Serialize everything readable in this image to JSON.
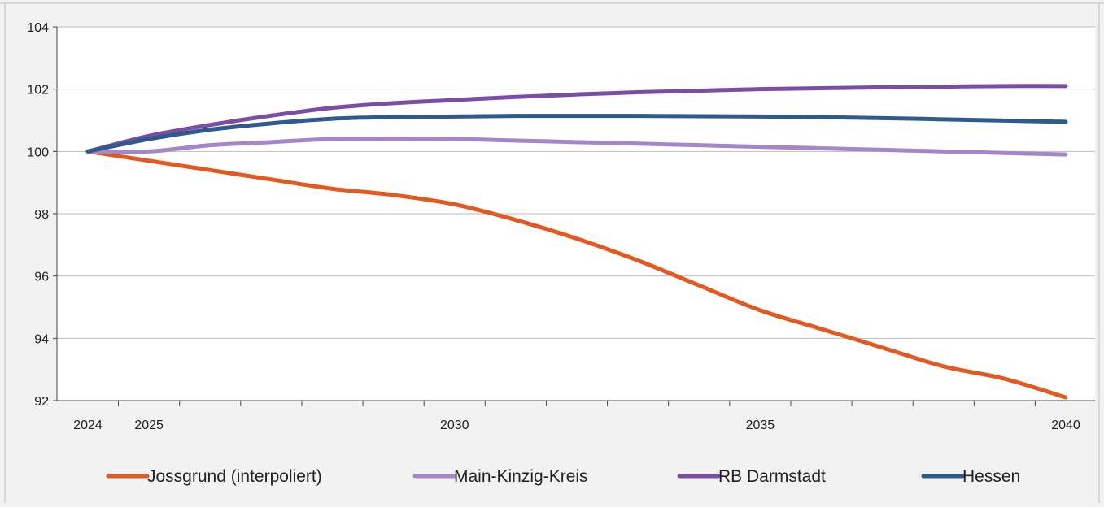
{
  "chart_data": {
    "type": "line",
    "title": "",
    "xlabel": "",
    "ylabel": "",
    "ylim": [
      92,
      104
    ],
    "yticks": [
      92,
      94,
      96,
      98,
      100,
      102,
      104
    ],
    "xlim": [
      2024,
      2040
    ],
    "xtick_labels": [
      "2024",
      "2025",
      "2030",
      "2035",
      "2040"
    ],
    "x": [
      2024,
      2025,
      2026,
      2027,
      2028,
      2029,
      2030,
      2031,
      2032,
      2033,
      2034,
      2035,
      2036,
      2037,
      2038,
      2039,
      2040
    ],
    "grid": "horizontal",
    "legend_position": "bottom",
    "series": [
      {
        "name": "Jossgrund (interpoliert)",
        "color": "#e05a22",
        "values": [
          100.0,
          99.7,
          99.4,
          99.1,
          98.8,
          98.6,
          98.3,
          97.8,
          97.2,
          96.5,
          95.7,
          94.9,
          94.3,
          93.7,
          93.1,
          92.7,
          92.1
        ]
      },
      {
        "name": "Main-Kinzig-Kreis",
        "color": "#a487c9",
        "values": [
          100.0,
          100.0,
          100.2,
          100.3,
          100.4,
          100.4,
          100.4,
          100.35,
          100.3,
          100.25,
          100.2,
          100.15,
          100.1,
          100.05,
          100.0,
          99.95,
          99.9
        ]
      },
      {
        "name": "RB Darmstadt",
        "color": "#7b4ea3",
        "values": [
          100.0,
          100.5,
          100.85,
          101.15,
          101.4,
          101.55,
          101.65,
          101.75,
          101.83,
          101.9,
          101.95,
          102.0,
          102.03,
          102.06,
          102.08,
          102.1,
          102.1
        ]
      },
      {
        "name": "Hessen",
        "color": "#2f5b8c",
        "values": [
          100.0,
          100.4,
          100.7,
          100.9,
          101.05,
          101.1,
          101.12,
          101.14,
          101.14,
          101.14,
          101.13,
          101.12,
          101.1,
          101.07,
          101.03,
          100.99,
          100.95
        ]
      }
    ]
  }
}
